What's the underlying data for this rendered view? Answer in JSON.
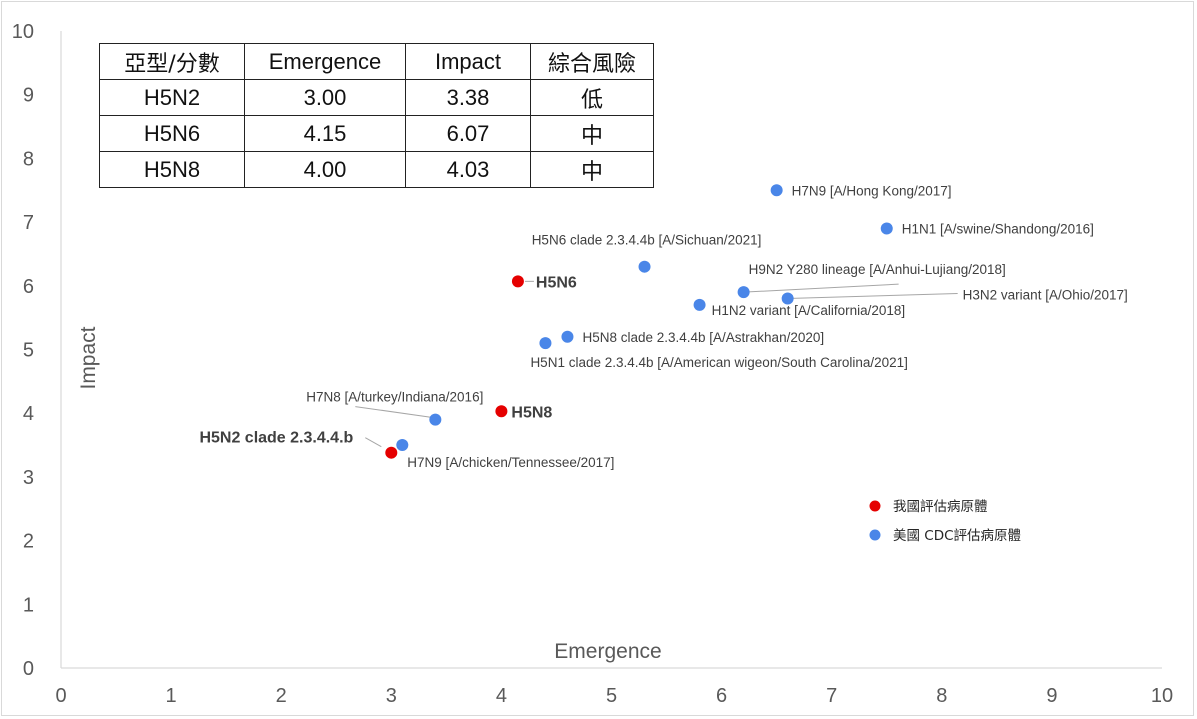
{
  "chart_data": {
    "type": "scatter",
    "xlabel": "Emergence",
    "ylabel": "Impact",
    "xlim": [
      0,
      10
    ],
    "ylim": [
      0,
      10
    ],
    "x_ticks": [
      "0",
      "1",
      "2",
      "3",
      "4",
      "5",
      "6",
      "7",
      "8",
      "9",
      "10"
    ],
    "y_ticks": [
      "0",
      "1",
      "2",
      "3",
      "4",
      "5",
      "6",
      "7",
      "8",
      "9",
      "10"
    ],
    "grid": false,
    "legend_placement": "bottom-right",
    "series": [
      {
        "name": "我國評估病原體",
        "color": "#e50000",
        "points": [
          {
            "x": 3.0,
            "y": 3.38,
            "label": "H5N2 clade 2.3.4.4.b"
          },
          {
            "x": 4.15,
            "y": 6.07,
            "label": "H5N6"
          },
          {
            "x": 4.0,
            "y": 4.03,
            "label": "H5N8"
          }
        ]
      },
      {
        "name": "美國 CDC評估病原體",
        "color": "#4a86e8",
        "points": [
          {
            "x": 6.5,
            "y": 7.5,
            "label": "H7N9 [A/Hong Kong/2017]"
          },
          {
            "x": 7.5,
            "y": 6.9,
            "label": "H1N1 [A/swine/Shandong/2016]"
          },
          {
            "x": 5.3,
            "y": 6.3,
            "label": "H5N6 clade 2.3.4.4b [A/Sichuan/2021]"
          },
          {
            "x": 6.2,
            "y": 5.9,
            "label": "H9N2 Y280 lineage [A/Anhui-Lujiang/2018]"
          },
          {
            "x": 6.6,
            "y": 5.8,
            "label": "H3N2 variant [A/Ohio/2017]"
          },
          {
            "x": 5.8,
            "y": 5.7,
            "label": "H1N2 variant [A/California/2018]"
          },
          {
            "x": 4.6,
            "y": 5.2,
            "label": "H5N8 clade 2.3.4.4b [A/Astrakhan/2020]"
          },
          {
            "x": 4.4,
            "y": 5.1,
            "label": "H5N1 clade 2.3.4.4b [A/American wigeon/South Carolina/2021]"
          },
          {
            "x": 3.4,
            "y": 3.9,
            "label": "H7N8 [A/turkey/Indiana/2016]"
          },
          {
            "x": 3.1,
            "y": 3.5,
            "label": "H7N9 [A/chicken/Tennessee/2017]"
          }
        ]
      }
    ],
    "table": {
      "headers": [
        "亞型/分數",
        "Emergence",
        "Impact",
        "綜合風險"
      ],
      "rows": [
        [
          "H5N2",
          "3.00",
          "3.38",
          "低"
        ],
        [
          "H5N6",
          "4.15",
          "6.07",
          "中"
        ],
        [
          "H5N8",
          "4.00",
          "4.03",
          "中"
        ]
      ]
    }
  }
}
